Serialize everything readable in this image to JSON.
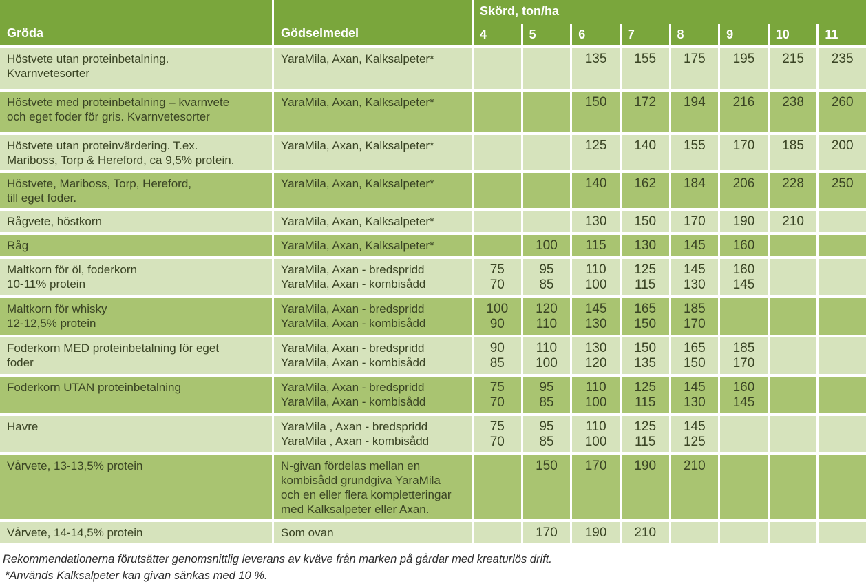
{
  "colors": {
    "header_green": "#7AA63C",
    "row_light": "#D6E3BC",
    "row_medium": "#A9C471",
    "cell_text": "#3A4424",
    "header_text": "#FFFFFF",
    "footnote_text": "#2D2D2D"
  },
  "table": {
    "header": {
      "crop": "Gröda",
      "fertilizer": "Gödselmedel",
      "yield_group": "Skörd, ton/ha",
      "yield_cols": [
        "4",
        "5",
        "6",
        "7",
        "8",
        "9",
        "10",
        "11"
      ]
    },
    "rows": [
      {
        "shade": "light",
        "min_h": 59,
        "crop": [
          "Höstvete utan proteinbetalning.",
          "Kvarnvetesorter"
        ],
        "fertilizer": [
          "YaraMila, Axan, Kalksalpeter*"
        ],
        "values": [
          [],
          [],
          [
            "135"
          ],
          [
            "155"
          ],
          [
            "175"
          ],
          [
            "195"
          ],
          [
            "215"
          ],
          [
            "235"
          ]
        ]
      },
      {
        "shade": "medium",
        "min_h": 59,
        "crop": [
          "Höstvete med proteinbetalning – kvarnvete",
          "och eget foder för gris. Kvarnvetesorter"
        ],
        "fertilizer": [
          "YaraMila, Axan, Kalksalpeter*"
        ],
        "values": [
          [],
          [],
          [
            "150"
          ],
          [
            "172"
          ],
          [
            "194"
          ],
          [
            "216"
          ],
          [
            "238"
          ],
          [
            "260"
          ]
        ]
      },
      {
        "shade": "light",
        "min_h": 50,
        "crop": [
          "Höstvete utan proteinvärdering. T.ex.",
          "Mariboss, Torp & Hereford, ca 9,5% protein."
        ],
        "fertilizer": [
          "YaraMila, Axan, Kalksalpeter*"
        ],
        "values": [
          [],
          [],
          [
            "125"
          ],
          [
            "140"
          ],
          [
            "155"
          ],
          [
            "170"
          ],
          [
            "185"
          ],
          [
            "200"
          ]
        ]
      },
      {
        "shade": "medium",
        "min_h": 49,
        "crop": [
          "Höstvete, Mariboss, Torp, Hereford,",
          "till eget foder."
        ],
        "fertilizer": [
          "YaraMila, Axan, Kalksalpeter*"
        ],
        "values": [
          [],
          [],
          [
            "140"
          ],
          [
            "162"
          ],
          [
            "184"
          ],
          [
            "206"
          ],
          [
            "228"
          ],
          [
            "250"
          ]
        ]
      },
      {
        "shade": "light",
        "min_h": 31,
        "crop": [
          "Rågvete, höstkorn"
        ],
        "fertilizer": [
          "YaraMila, Axan, Kalksalpeter*"
        ],
        "values": [
          [],
          [],
          [
            "130"
          ],
          [
            "150"
          ],
          [
            "170"
          ],
          [
            "190"
          ],
          [
            "210"
          ],
          []
        ]
      },
      {
        "shade": "medium",
        "min_h": 29,
        "crop": [
          "Råg"
        ],
        "fertilizer": [
          "YaraMila, Axan, Kalksalpeter*"
        ],
        "values": [
          [],
          [
            "100"
          ],
          [
            "115"
          ],
          [
            "130"
          ],
          [
            "145"
          ],
          [
            "160"
          ],
          [],
          []
        ]
      },
      {
        "shade": "light",
        "min_h": 50,
        "crop": [
          "Maltkorn för öl, foderkorn",
          "10-11% protein"
        ],
        "fertilizer": [
          "YaraMila, Axan - bredspridd",
          "YaraMila, Axan - kombisådd"
        ],
        "values": [
          [
            "75",
            "70"
          ],
          [
            "95",
            "85"
          ],
          [
            "110",
            "100"
          ],
          [
            "125",
            "115"
          ],
          [
            "145",
            "130"
          ],
          [
            "160",
            "145"
          ],
          [],
          []
        ]
      },
      {
        "shade": "medium",
        "min_h": 52,
        "crop": [
          "Maltkorn för whisky",
          "12-12,5% protein"
        ],
        "fertilizer": [
          "YaraMila, Axan - bredspridd",
          "YaraMila, Axan - kombisådd"
        ],
        "values": [
          [
            "100",
            "90"
          ],
          [
            "120",
            "110"
          ],
          [
            "145",
            "130"
          ],
          [
            "165",
            "150"
          ],
          [
            "185",
            "170"
          ],
          [],
          [],
          []
        ]
      },
      {
        "shade": "light",
        "min_h": 50,
        "crop": [
          "Foderkorn MED proteinbetalning för eget",
          "foder"
        ],
        "fertilizer": [
          "YaraMila, Axan - bredspridd",
          "YaraMila, Axan - kombisådd"
        ],
        "values": [
          [
            "90",
            "85"
          ],
          [
            "110",
            "100"
          ],
          [
            "130",
            "120"
          ],
          [
            "150",
            "135"
          ],
          [
            "165",
            "150"
          ],
          [
            "185",
            "170"
          ],
          [],
          []
        ]
      },
      {
        "shade": "medium",
        "min_h": 52,
        "crop": [
          "Foderkorn UTAN proteinbetalning"
        ],
        "fertilizer": [
          "YaraMila, Axan - bredspridd",
          "YaraMila, Axan - kombisådd"
        ],
        "values": [
          [
            "75",
            "70"
          ],
          [
            "95",
            "85"
          ],
          [
            "110",
            "100"
          ],
          [
            "125",
            "115"
          ],
          [
            "145",
            "130"
          ],
          [
            "160",
            "145"
          ],
          [],
          []
        ]
      },
      {
        "shade": "light",
        "min_h": 51,
        "crop": [
          "Havre"
        ],
        "fertilizer": [
          "YaraMila , Axan - bredspridd",
          "YaraMila , Axan - kombisådd"
        ],
        "values": [
          [
            "75",
            "70"
          ],
          [
            "95",
            "85"
          ],
          [
            "110",
            "100"
          ],
          [
            "125",
            "115"
          ],
          [
            "145",
            "125"
          ],
          [],
          [],
          []
        ]
      },
      {
        "shade": "medium",
        "min_h": 92,
        "crop": [
          "Vårvete, 13-13,5% protein"
        ],
        "fertilizer": [
          "N-givan fördelas mellan en",
          "kombisådd grundgiva YaraMila",
          "och en eller flera kompletteringar",
          "med Kalksalpeter eller Axan."
        ],
        "values": [
          [],
          [
            "150"
          ],
          [
            "170"
          ],
          [
            "190"
          ],
          [
            "210"
          ],
          [],
          [],
          []
        ]
      },
      {
        "shade": "light",
        "min_h": 28,
        "crop": [
          "Vårvete, 14-14,5% protein"
        ],
        "fertilizer": [
          "Som ovan"
        ],
        "values": [
          [],
          [
            "170"
          ],
          [
            "190"
          ],
          [
            "210"
          ],
          [],
          [],
          [],
          []
        ]
      }
    ]
  },
  "footnotes": [
    "Rekommendationerna förutsätter genomsnittlig leverans av kväve från marken på gårdar med kreaturlös drift.",
    "*Används Kalksalpeter kan givan sänkas med 10 %."
  ]
}
